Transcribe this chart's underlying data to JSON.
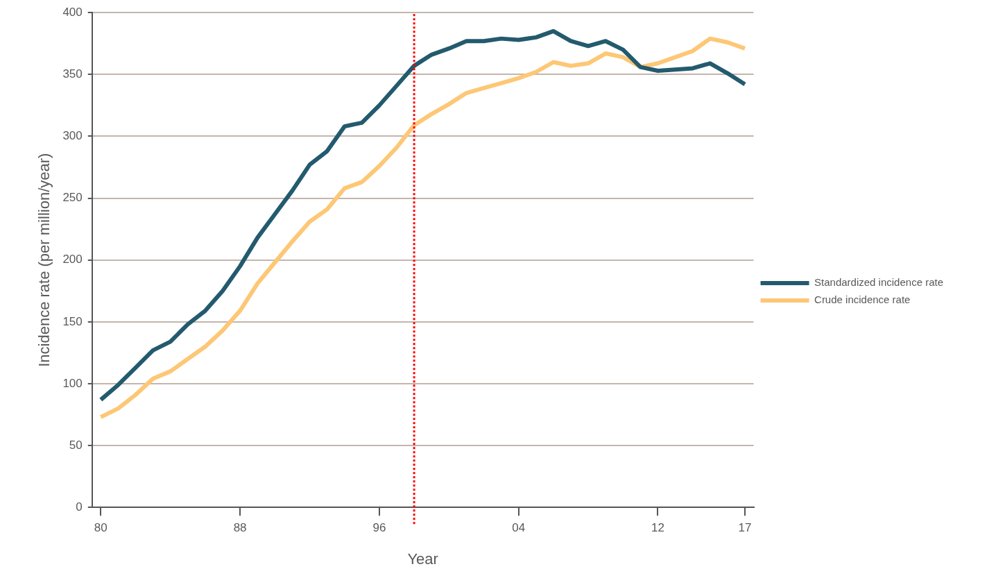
{
  "chart_data": {
    "type": "line",
    "xlabel": "Year",
    "ylabel": "Incidence rate (per million/year)",
    "x": [
      1980,
      1981,
      1982,
      1983,
      1984,
      1985,
      1986,
      1987,
      1988,
      1989,
      1990,
      1991,
      1992,
      1993,
      1994,
      1995,
      1996,
      1997,
      1998,
      1999,
      2000,
      2001,
      2002,
      2003,
      2004,
      2005,
      2006,
      2007,
      2008,
      2009,
      2010,
      2011,
      2012,
      2013,
      2014,
      2015,
      2016,
      2017
    ],
    "series": [
      {
        "name": "Standardized incidence rate",
        "color": "#235a6e",
        "values": [
          87,
          99,
          113,
          127,
          134,
          148,
          159,
          175,
          195,
          218,
          237,
          256,
          277,
          288,
          308,
          311,
          325,
          341,
          357,
          366,
          371,
          377,
          377,
          379,
          378,
          380,
          385,
          377,
          373,
          377,
          370,
          356,
          353,
          354,
          355,
          359,
          351,
          342
        ]
      },
      {
        "name": "Crude incidence rate",
        "color": "#fdc775",
        "values": [
          73,
          80,
          91,
          104,
          110,
          120,
          130,
          143,
          159,
          181,
          198,
          215,
          231,
          241,
          258,
          263,
          276,
          291,
          309,
          318,
          326,
          335,
          339,
          343,
          347,
          352,
          360,
          357,
          359,
          367,
          364,
          356,
          359,
          364,
          369,
          379,
          376,
          371
        ]
      }
    ],
    "xlim": [
      1979.5,
      2017.5
    ],
    "xticks": [
      {
        "value": 1980,
        "label": "80"
      },
      {
        "value": 1988,
        "label": "88"
      },
      {
        "value": 1996,
        "label": "96"
      },
      {
        "value": 2004,
        "label": "04"
      },
      {
        "value": 2012,
        "label": "12"
      },
      {
        "value": 2017,
        "label": "17"
      }
    ],
    "ylim": [
      0,
      400
    ],
    "yticks": [
      0,
      50,
      100,
      150,
      200,
      250,
      300,
      350,
      400
    ],
    "ref_lines": [
      {
        "axis": "x",
        "value": 1998,
        "color": "#ff0000",
        "line_style": "dotted"
      }
    ],
    "grid": "y",
    "legend": "right",
    "marker": "none",
    "line_style": "solid"
  }
}
